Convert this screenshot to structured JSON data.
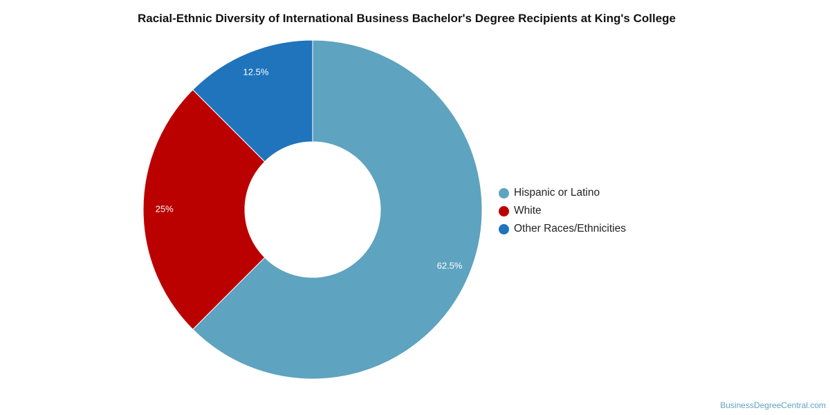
{
  "chart_data": {
    "type": "pie",
    "title": "Racial-Ethnic Diversity of International Business Bachelor's Degree Recipients at King's College",
    "categories": [
      "Hispanic or Latino",
      "White",
      "Other Races/Ethnicities"
    ],
    "values": [
      62.5,
      25,
      12.5
    ],
    "data_labels": [
      "62.5%",
      "25%",
      "12.5%"
    ],
    "colors": [
      "#5ea3bf",
      "#bb0000",
      "#1f74bc"
    ],
    "donut": true,
    "legend_position": "right"
  },
  "credit": "BusinessDegreeCentral.com"
}
